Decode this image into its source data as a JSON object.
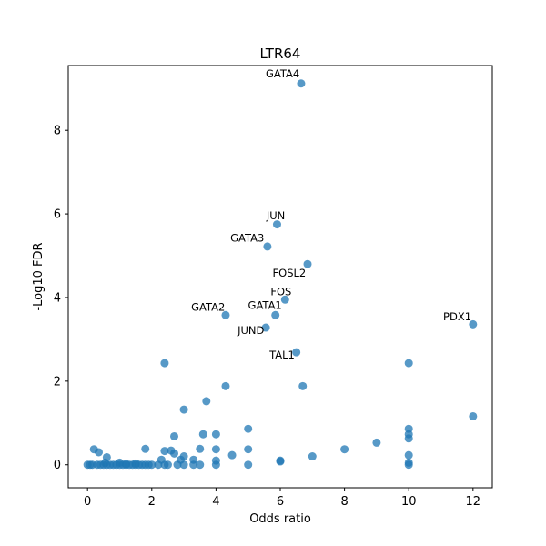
{
  "chart_data": {
    "type": "scatter",
    "title": "LTR64",
    "xlabel": "Odds ratio",
    "ylabel": "-Log10 FDR",
    "xlim": [
      -0.6,
      12.6
    ],
    "ylim": [
      -0.55,
      9.55
    ],
    "xticks": [
      0,
      2,
      4,
      6,
      8,
      10,
      12
    ],
    "yticks": [
      0,
      2,
      4,
      6,
      8
    ],
    "grid": false,
    "color": "#1f77b4",
    "points": [
      {
        "x": 0,
        "y": 0
      },
      {
        "x": 0.08,
        "y": 0
      },
      {
        "x": 0.15,
        "y": 0
      },
      {
        "x": 0.3,
        "y": 0
      },
      {
        "x": 0.4,
        "y": 0
      },
      {
        "x": 0.5,
        "y": 0
      },
      {
        "x": 0.6,
        "y": 0
      },
      {
        "x": 0.7,
        "y": 0
      },
      {
        "x": 0.8,
        "y": 0
      },
      {
        "x": 0.9,
        "y": 0
      },
      {
        "x": 1.0,
        "y": 0
      },
      {
        "x": 1.1,
        "y": 0
      },
      {
        "x": 1.2,
        "y": 0
      },
      {
        "x": 1.3,
        "y": 0
      },
      {
        "x": 1.4,
        "y": 0
      },
      {
        "x": 1.5,
        "y": 0
      },
      {
        "x": 1.6,
        "y": 0
      },
      {
        "x": 1.7,
        "y": 0
      },
      {
        "x": 1.8,
        "y": 0
      },
      {
        "x": 1.9,
        "y": 0
      },
      {
        "x": 2.0,
        "y": 0
      },
      {
        "x": 2.2,
        "y": 0
      },
      {
        "x": 2.4,
        "y": 0
      },
      {
        "x": 2.5,
        "y": 0
      },
      {
        "x": 2.8,
        "y": 0
      },
      {
        "x": 3.0,
        "y": 0
      },
      {
        "x": 3.3,
        "y": 0
      },
      {
        "x": 3.5,
        "y": 0
      },
      {
        "x": 4.0,
        "y": 0
      },
      {
        "x": 5.0,
        "y": 0
      },
      {
        "x": 6.0,
        "y": 0.08
      },
      {
        "x": 10.0,
        "y": 0
      },
      {
        "x": 10.0,
        "y": 0.05
      },
      {
        "x": 0.2,
        "y": 0.37
      },
      {
        "x": 0.35,
        "y": 0.3
      },
      {
        "x": 0.6,
        "y": 0.18
      },
      {
        "x": 0.55,
        "y": 0.05
      },
      {
        "x": 1.0,
        "y": 0.05
      },
      {
        "x": 1.2,
        "y": 0.02
      },
      {
        "x": 1.5,
        "y": 0.03
      },
      {
        "x": 1.8,
        "y": 0.38
      },
      {
        "x": 2.3,
        "y": 0.12
      },
      {
        "x": 2.4,
        "y": 0.33
      },
      {
        "x": 2.6,
        "y": 0.34
      },
      {
        "x": 2.7,
        "y": 0.27
      },
      {
        "x": 2.7,
        "y": 0.68
      },
      {
        "x": 2.9,
        "y": 0.12
      },
      {
        "x": 3.0,
        "y": 0.2
      },
      {
        "x": 3.0,
        "y": 1.32
      },
      {
        "x": 3.3,
        "y": 0.12
      },
      {
        "x": 3.5,
        "y": 0.38
      },
      {
        "x": 3.6,
        "y": 0.73
      },
      {
        "x": 3.7,
        "y": 1.52
      },
      {
        "x": 4.0,
        "y": 0.73
      },
      {
        "x": 4.0,
        "y": 0.37
      },
      {
        "x": 4.0,
        "y": 0.1
      },
      {
        "x": 4.3,
        "y": 1.88
      },
      {
        "x": 4.5,
        "y": 0.23
      },
      {
        "x": 5.0,
        "y": 0.37
      },
      {
        "x": 5.0,
        "y": 0.86
      },
      {
        "x": 6.0,
        "y": 0.1
      },
      {
        "x": 6.7,
        "y": 1.88
      },
      {
        "x": 7.0,
        "y": 0.2
      },
      {
        "x": 8.0,
        "y": 0.37
      },
      {
        "x": 9.0,
        "y": 0.53
      },
      {
        "x": 10.0,
        "y": 0.23
      },
      {
        "x": 10.0,
        "y": 0.63
      },
      {
        "x": 10.0,
        "y": 0.73
      },
      {
        "x": 10.0,
        "y": 0.86
      },
      {
        "x": 10.0,
        "y": 2.43
      },
      {
        "x": 12.0,
        "y": 1.16
      },
      {
        "x": 2.4,
        "y": 2.43
      },
      {
        "x": 6.65,
        "y": 9.12
      },
      {
        "x": 5.9,
        "y": 5.75
      },
      {
        "x": 5.6,
        "y": 5.22
      },
      {
        "x": 6.85,
        "y": 4.8
      },
      {
        "x": 6.15,
        "y": 3.95
      },
      {
        "x": 5.85,
        "y": 3.58
      },
      {
        "x": 4.3,
        "y": 3.58
      },
      {
        "x": 5.55,
        "y": 3.28
      },
      {
        "x": 6.5,
        "y": 2.69
      },
      {
        "x": 12.0,
        "y": 3.36
      }
    ],
    "annotations": [
      {
        "text": "GATA4",
        "x": 6.65,
        "y": 9.12,
        "anchor": "end",
        "dx": -0.05,
        "dy": 0.15
      },
      {
        "text": "JUN",
        "x": 5.9,
        "y": 5.75,
        "anchor": "end",
        "dx": 0.25,
        "dy": 0.12
      },
      {
        "text": "GATA3",
        "x": 5.6,
        "y": 5.22,
        "anchor": "end",
        "dx": -0.1,
        "dy": 0.12
      },
      {
        "text": "FOSL2",
        "x": 6.85,
        "y": 4.8,
        "anchor": "end",
        "dx": -0.05,
        "dy": -0.3
      },
      {
        "text": "FOS",
        "x": 6.15,
        "y": 3.95,
        "anchor": "end",
        "dx": 0.2,
        "dy": 0.1
      },
      {
        "text": "GATA1",
        "x": 5.85,
        "y": 3.58,
        "anchor": "end",
        "dx": 0.2,
        "dy": 0.15
      },
      {
        "text": "GATA2",
        "x": 4.3,
        "y": 3.58,
        "anchor": "end",
        "dx": -0.02,
        "dy": 0.1
      },
      {
        "text": "JUND",
        "x": 5.55,
        "y": 3.28,
        "anchor": "end",
        "dx": -0.05,
        "dy": -0.15
      },
      {
        "text": "TAL1",
        "x": 6.5,
        "y": 2.69,
        "anchor": "end",
        "dx": -0.05,
        "dy": -0.15
      },
      {
        "text": "PDX1",
        "x": 12.0,
        "y": 3.36,
        "anchor": "end",
        "dx": -0.05,
        "dy": 0.1
      }
    ]
  }
}
